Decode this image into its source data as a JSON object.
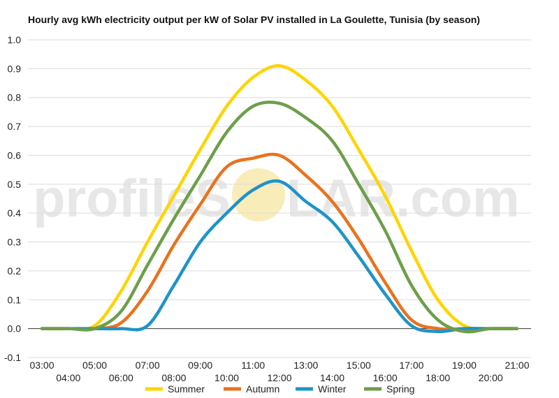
{
  "chart_data": {
    "type": "line",
    "title": "Hourly avg kWh electricity output per kW of Solar PV installed in La Goulette, Tunisia (by season)",
    "xlabel": "",
    "ylabel": "",
    "x": [
      "03:00",
      "04:00",
      "05:00",
      "06:00",
      "07:00",
      "08:00",
      "09:00",
      "10:00",
      "11:00",
      "12:00",
      "13:00",
      "14:00",
      "15:00",
      "16:00",
      "17:00",
      "18:00",
      "19:00",
      "20:00",
      "21:00"
    ],
    "x_tick_labels_upper": [
      "03:00",
      "05:00",
      "07:00",
      "09:00",
      "11:00",
      "13:00",
      "15:00",
      "17:00",
      "19:00",
      "21:00"
    ],
    "x_tick_labels_lower": [
      "04:00",
      "06:00",
      "08:00",
      "10:00",
      "12:00",
      "14:00",
      "16:00",
      "18:00",
      "20:00"
    ],
    "ylim": [
      -0.1,
      1.0
    ],
    "y_ticks": [
      "1.0",
      "0.9",
      "0.8",
      "0.7",
      "0.6",
      "0.5",
      "0.4",
      "0.3",
      "0.2",
      "0.1",
      "0.0",
      "-0.1"
    ],
    "grid": true,
    "legend_position": "bottom",
    "series": [
      {
        "name": "Summer",
        "color": "#FFD400",
        "values": [
          0,
          0,
          0.01,
          0.13,
          0.3,
          0.46,
          0.62,
          0.77,
          0.87,
          0.91,
          0.86,
          0.77,
          0.62,
          0.46,
          0.27,
          0.1,
          0.01,
          0,
          0
        ]
      },
      {
        "name": "Autumn",
        "color": "#E8731F",
        "values": [
          0,
          0,
          0,
          0.02,
          0.13,
          0.29,
          0.43,
          0.56,
          0.59,
          0.6,
          0.53,
          0.44,
          0.31,
          0.16,
          0.03,
          0,
          0,
          0,
          0
        ]
      },
      {
        "name": "Winter",
        "color": "#1F93C8",
        "values": [
          0,
          0,
          0,
          0,
          0.01,
          0.15,
          0.3,
          0.4,
          0.48,
          0.51,
          0.44,
          0.37,
          0.25,
          0.12,
          0.01,
          -0.01,
          0,
          0,
          0
        ]
      },
      {
        "name": "Spring",
        "color": "#6E9E4B",
        "values": [
          0,
          0,
          0,
          0.06,
          0.22,
          0.38,
          0.53,
          0.68,
          0.77,
          0.78,
          0.73,
          0.65,
          0.5,
          0.34,
          0.15,
          0.03,
          -0.01,
          0,
          0
        ]
      }
    ]
  },
  "watermark": {
    "left": "profileS",
    "right": "LAR.com",
    "sun_color": "#F5E49A"
  }
}
